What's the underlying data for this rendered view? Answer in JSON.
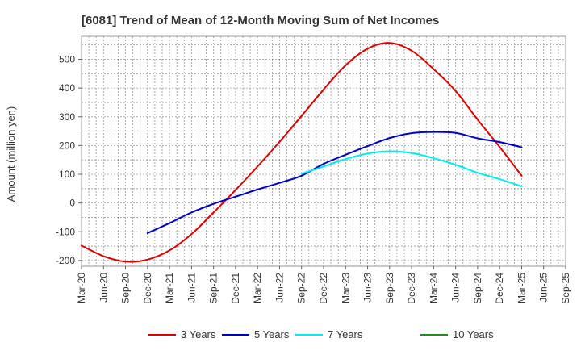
{
  "chart_data": {
    "type": "line",
    "title": "[6081]  Trend of Mean of 12-Month Moving Sum of Net Incomes",
    "ylabel": "Amount (million yen)",
    "xlabel": "",
    "ylim": [
      -220,
      580
    ],
    "yticks": [
      -200,
      -100,
      0,
      100,
      200,
      300,
      400,
      500
    ],
    "grid": true,
    "legend_position": "bottom",
    "x_ticks": [
      "Mar-20",
      "Jun-20",
      "Sep-20",
      "Dec-20",
      "Mar-21",
      "Jun-21",
      "Sep-21",
      "Dec-21",
      "Mar-22",
      "Jun-22",
      "Sep-22",
      "Dec-22",
      "Mar-23",
      "Jun-23",
      "Sep-23",
      "Dec-23",
      "Mar-24",
      "Jun-24",
      "Sep-24",
      "Dec-24",
      "Mar-25",
      "Jun-25",
      "Sep-25"
    ],
    "series": [
      {
        "name": "3 Years",
        "color": "#e00000",
        "points": [
          [
            "Mar-20",
            -148
          ],
          [
            "Jun-20",
            -185
          ],
          [
            "Sep-20",
            -204
          ],
          [
            "Dec-20",
            -197
          ],
          [
            "Mar-21",
            -165
          ],
          [
            "Jun-21",
            -108
          ],
          [
            "Sep-21",
            -33
          ],
          [
            "Dec-21",
            45
          ],
          [
            "Mar-22",
            127
          ],
          [
            "Jun-22",
            213
          ],
          [
            "Sep-22",
            303
          ],
          [
            "Dec-22",
            395
          ],
          [
            "Mar-23",
            479
          ],
          [
            "Jun-23",
            537
          ],
          [
            "Sep-23",
            557
          ],
          [
            "Dec-23",
            530
          ],
          [
            "Mar-24",
            466
          ],
          [
            "Jun-24",
            390
          ],
          [
            "Sep-24",
            290
          ],
          [
            "Dec-24",
            195
          ],
          [
            "Mar-25",
            95
          ]
        ]
      },
      {
        "name": "5 Years",
        "color": "#0000cc",
        "points": [
          [
            "Dec-20",
            -105
          ],
          [
            "Mar-21",
            -70
          ],
          [
            "Jun-21",
            -33
          ],
          [
            "Sep-21",
            -3
          ],
          [
            "Dec-21",
            22
          ],
          [
            "Mar-22",
            47
          ],
          [
            "Jun-22",
            70
          ],
          [
            "Sep-22",
            95
          ],
          [
            "Dec-22",
            136
          ],
          [
            "Mar-23",
            168
          ],
          [
            "Jun-23",
            198
          ],
          [
            "Sep-23",
            226
          ],
          [
            "Dec-23",
            243
          ],
          [
            "Mar-24",
            247
          ],
          [
            "Jun-24",
            244
          ],
          [
            "Sep-24",
            225
          ],
          [
            "Dec-24",
            212
          ],
          [
            "Mar-25",
            194
          ]
        ]
      },
      {
        "name": "7 Years",
        "color": "#00eeee",
        "points": [
          [
            "Sep-22",
            102
          ],
          [
            "Dec-22",
            127
          ],
          [
            "Mar-23",
            153
          ],
          [
            "Jun-23",
            172
          ],
          [
            "Sep-23",
            180
          ],
          [
            "Dec-23",
            174
          ],
          [
            "Mar-24",
            156
          ],
          [
            "Jun-24",
            133
          ],
          [
            "Sep-24",
            105
          ],
          [
            "Dec-24",
            83
          ],
          [
            "Mar-25",
            58
          ]
        ]
      },
      {
        "name": "10 Years",
        "color": "#228b22",
        "points": []
      }
    ]
  }
}
